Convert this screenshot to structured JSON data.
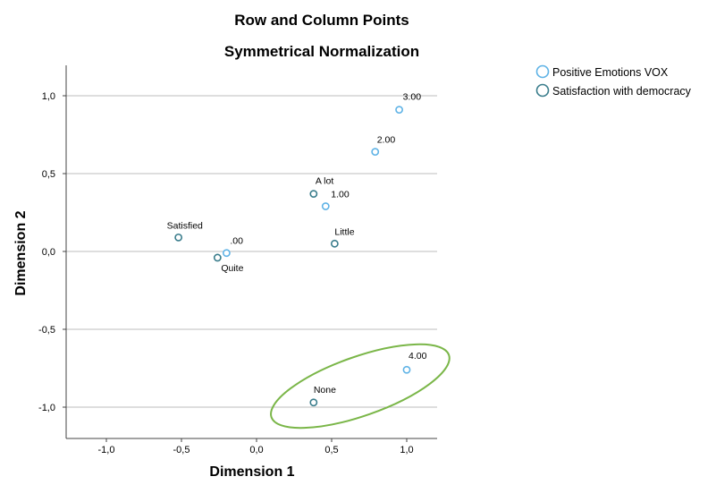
{
  "chart_data": {
    "type": "scatter",
    "title": "Row and Column Points",
    "subtitle": "Symmetrical Normalization",
    "xlabel": "Dimension 1",
    "ylabel": "Dimension 2",
    "xlim": [
      -1.2,
      1.2
    ],
    "ylim": [
      -1.2,
      1.2
    ],
    "x_ticks": [
      "-1,0",
      "-0,5",
      "0,0",
      "0,5",
      "1,0"
    ],
    "y_ticks": [
      "1,0",
      "0,5",
      "0,0",
      "-0,5",
      "-1,0"
    ],
    "grid": "horizontal",
    "legend_position": "top-right",
    "series": [
      {
        "name": "Positive Emotions VOX",
        "color": "#5fb3e6",
        "points": [
          {
            "label": "3.00",
            "x": 0.95,
            "y": 0.91
          },
          {
            "label": "2.00",
            "x": 0.79,
            "y": 0.64
          },
          {
            "label": "1.00",
            "x": 0.46,
            "y": 0.29
          },
          {
            "label": ".00",
            "x": -0.2,
            "y": -0.01
          },
          {
            "label": "4.00",
            "x": 1.0,
            "y": -0.76
          }
        ]
      },
      {
        "name": "Satisfaction with democracy",
        "color": "#3a7d8c",
        "points": [
          {
            "label": "A lot",
            "x": 0.38,
            "y": 0.37
          },
          {
            "label": "Little",
            "x": 0.52,
            "y": 0.05
          },
          {
            "label": "Satisfied",
            "x": -0.52,
            "y": 0.09
          },
          {
            "label": "Quite",
            "x": -0.26,
            "y": -0.04
          },
          {
            "label": "None",
            "x": 0.38,
            "y": -0.97
          }
        ]
      }
    ],
    "annotation": {
      "shape": "ellipse",
      "color": "#7ab648",
      "encloses": [
        "4.00",
        "None"
      ]
    }
  }
}
